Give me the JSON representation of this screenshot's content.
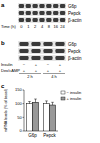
{
  "panels": [
    {
      "label": "a",
      "rows": [
        "G6p",
        "Pepck",
        "β-actin"
      ],
      "conditions": [
        {
          "label": "Time (h)",
          "values": [
            0,
            1,
            2,
            4,
            8,
            16,
            24
          ]
        }
      ]
    },
    {
      "label": "b",
      "rows": [
        "G6p",
        "Pepck",
        "β-actin"
      ],
      "conditions": [
        {
          "label": "Insulin",
          "values": [
            "−",
            "+",
            "−",
            "+"
          ]
        },
        {
          "label": "Dex/cAMP",
          "values": [
            "+",
            "+",
            "+",
            "+"
          ]
        }
      ],
      "groups": [
        "2 h",
        "4 h"
      ]
    }
  ],
  "chart_data": {
    "label": "c",
    "type": "bar",
    "categories": [
      "G6p",
      "Pepck"
    ],
    "y_label": "mRNA levels (% of basal)",
    "ylim": [
      0,
      150
    ],
    "yticks": [
      0,
      50,
      100,
      150
    ],
    "legend": "top-right",
    "series": [
      {
        "name": "− insulin",
        "color": "#ffffff",
        "values": [
          100,
          100
        ],
        "errors": [
          8,
          10
        ]
      },
      {
        "name": "+ insulin",
        "color": "#999999",
        "values": [
          105,
          95
        ],
        "errors": [
          12,
          10
        ]
      }
    ]
  }
}
